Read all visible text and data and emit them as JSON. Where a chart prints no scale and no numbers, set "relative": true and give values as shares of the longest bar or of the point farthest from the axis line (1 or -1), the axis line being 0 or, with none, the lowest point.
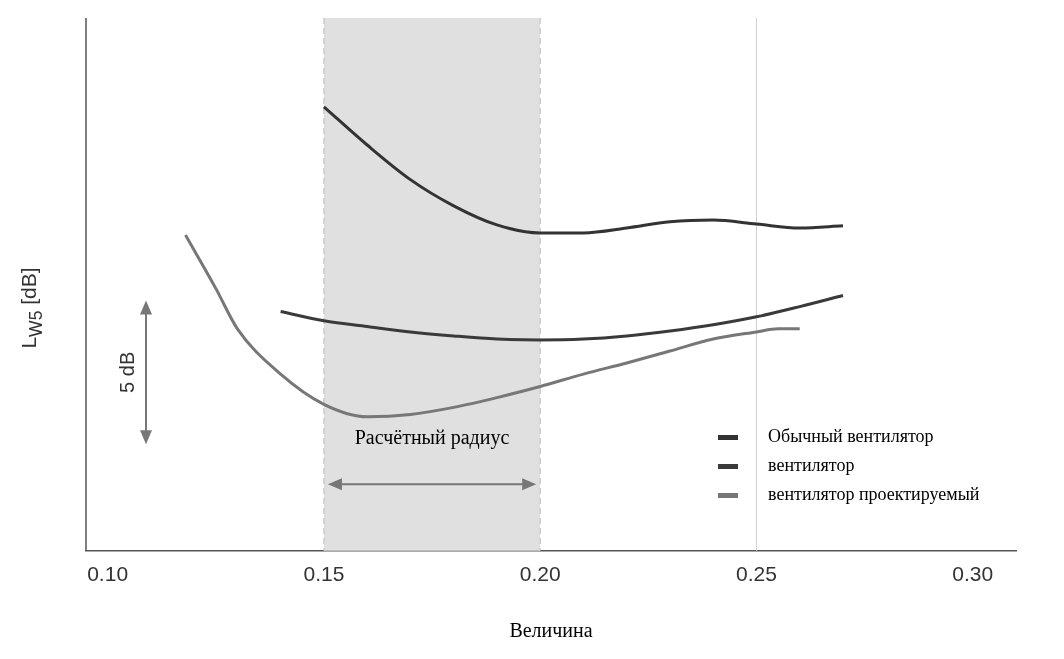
{
  "chart_data": {
    "type": "line",
    "relative": true,
    "xlabel": "Величина",
    "ylabel": "L$_{W5}$ [dB]",
    "xlim": [
      0.095,
      0.31
    ],
    "xticks": [
      {
        "value": 0.1,
        "label": "0.10"
      },
      {
        "value": 0.15,
        "label": "0.15"
      },
      {
        "value": 0.2,
        "label": "0.20"
      },
      {
        "value": 0.25,
        "label": "0.25"
      },
      {
        "value": 0.3,
        "label": "0.30"
      }
    ],
    "series": [
      {
        "name": "Обычный вентилятор",
        "color": "#333333",
        "x": [
          0.15,
          0.16,
          0.17,
          0.18,
          0.19,
          0.2,
          0.21,
          0.22,
          0.23,
          0.24,
          0.25,
          0.26,
          0.27
        ],
        "values": [
          1.0,
          0.914,
          0.836,
          0.777,
          0.734,
          0.716,
          0.716,
          0.727,
          0.741,
          0.745,
          0.736,
          0.727,
          0.732
        ]
      },
      {
        "name": "вентилятор",
        "color": "#3a3a3a",
        "x": [
          0.14,
          0.15,
          0.16,
          0.17,
          0.18,
          0.19,
          0.2,
          0.21,
          0.22,
          0.23,
          0.24,
          0.25,
          0.26,
          0.27
        ],
        "values": [
          0.539,
          0.518,
          0.505,
          0.493,
          0.484,
          0.477,
          0.475,
          0.477,
          0.484,
          0.495,
          0.509,
          0.527,
          0.55,
          0.575
        ]
      },
      {
        "name": "вентилятор проектируемый",
        "color": "#777777",
        "x": [
          0.118,
          0.125,
          0.13,
          0.14,
          0.15,
          0.16,
          0.17,
          0.18,
          0.19,
          0.2,
          0.21,
          0.22,
          0.23,
          0.24,
          0.25,
          0.255,
          0.26
        ],
        "values": [
          0.711,
          0.591,
          0.5,
          0.398,
          0.33,
          0.302,
          0.307,
          0.323,
          0.345,
          0.37,
          0.398,
          0.423,
          0.45,
          0.477,
          0.493,
          0.5,
          0.5
        ]
      }
    ],
    "bands": [
      {
        "axis": "x",
        "from": 0.15,
        "to": 0.2,
        "label": "Расчётный радиус",
        "color": "#e0e0e0"
      }
    ],
    "ref_lines": [
      {
        "axis": "x",
        "value": 0.25,
        "color": "#d0d0d0"
      }
    ],
    "annotations": [
      "5 dB"
    ],
    "legend": "bottom right"
  }
}
